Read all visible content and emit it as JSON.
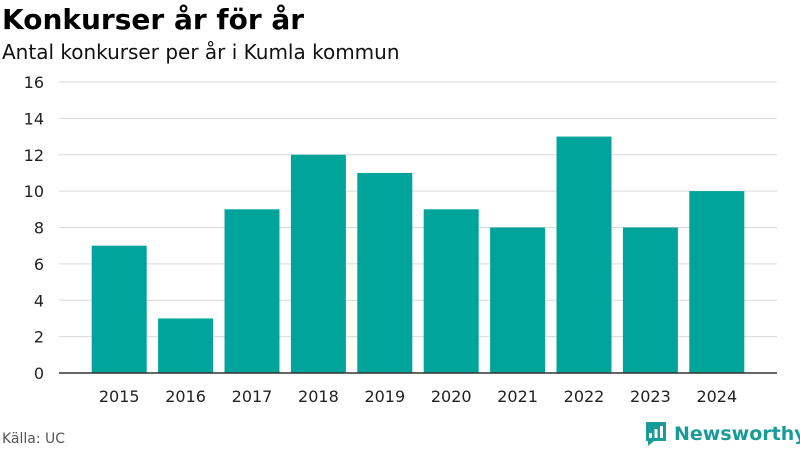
{
  "header": {
    "title": "Konkurser år för år",
    "subtitle": "Antal konkurser per år i Kumla kommun"
  },
  "footer": {
    "source": "Källa: UC",
    "brand": "Newsworthy",
    "brand_icon": "bar-chart-speech-bubble-icon"
  },
  "colors": {
    "bar": "#00a49b",
    "grid": "#d9d9d9",
    "axis": "#333333",
    "brand": "#1a9b97"
  },
  "chart_data": {
    "type": "bar",
    "title": "Konkurser år för år",
    "subtitle": "Antal konkurser per år i Kumla kommun",
    "categories": [
      "2015",
      "2016",
      "2017",
      "2018",
      "2019",
      "2020",
      "2021",
      "2022",
      "2023",
      "2024"
    ],
    "values": [
      7,
      3,
      9,
      12,
      11,
      9,
      8,
      13,
      8,
      10
    ],
    "ylim": [
      0,
      16
    ],
    "yticks": [
      0,
      2,
      4,
      6,
      8,
      10,
      12,
      14,
      16
    ],
    "xlabel": "",
    "ylabel": "",
    "grid": true,
    "legend": "none"
  }
}
